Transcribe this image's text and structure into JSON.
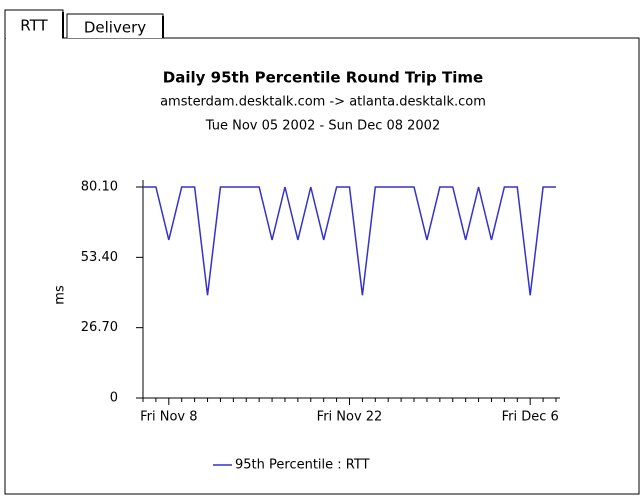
{
  "tabs": [
    "RTT",
    "Delivery"
  ],
  "chart_data": {
    "type": "line",
    "title": "Daily 95th Percentile Round Trip Time",
    "subtitle": [
      "amsterdam.desktalk.com -> atlanta.desktalk.com",
      "Tue Nov 05 2002 - Sun Dec 08 2002"
    ],
    "y_label": "ms",
    "categories": [
      null,
      null,
      "Fri Nov 8",
      null,
      null,
      null,
      null,
      null,
      null,
      null,
      null,
      null,
      null,
      null,
      null,
      null,
      "Fri Nov 22",
      null,
      null,
      null,
      null,
      null,
      null,
      null,
      null,
      null,
      null,
      null,
      null,
      null,
      "Fri Dec 6",
      null,
      null
    ],
    "series": [
      {
        "name": "95th Percentile : RTT",
        "color": "#3333cc",
        "values": [
          80.1,
          80.1,
          60,
          80.1,
          80.1,
          39,
          80.1,
          80.1,
          80.1,
          80.1,
          60,
          80.1,
          60,
          80.1,
          60,
          80.1,
          80.1,
          39,
          80.1,
          80.1,
          80.1,
          80.1,
          60,
          80.1,
          80.1,
          60,
          80.1,
          60,
          80.1,
          80.1,
          39,
          80.1,
          80.1
        ]
      }
    ],
    "ylim": [
      0,
      80.1
    ],
    "yticks": [
      0,
      {
        "value": 26.7,
        "label": "26.70"
      },
      {
        "value": 53.4,
        "label": "53.40"
      },
      {
        "value": 80.1,
        "label": "80.10"
      }
    ],
    "legend": "bottom"
  }
}
